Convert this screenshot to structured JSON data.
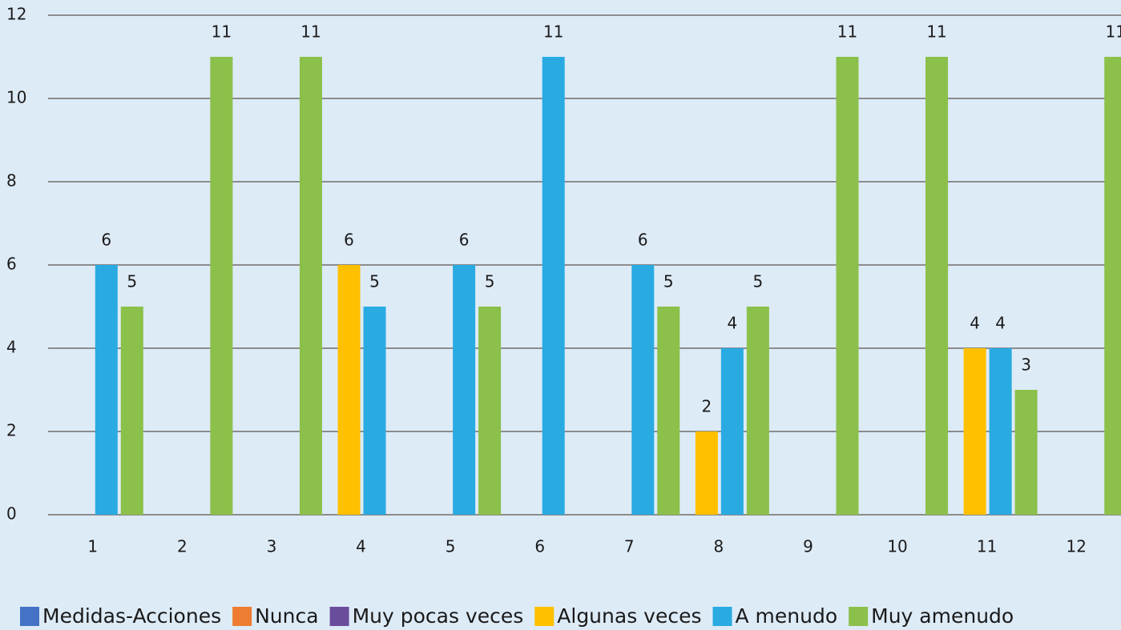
{
  "chart_data": {
    "type": "bar",
    "categories": [
      "1",
      "2",
      "3",
      "4",
      "5",
      "6",
      "7",
      "8",
      "9",
      "10",
      "11",
      "12"
    ],
    "series": [
      {
        "name": "Medidas-Acciones",
        "color": "#4472c4",
        "values": [
          null,
          null,
          null,
          null,
          null,
          null,
          null,
          null,
          null,
          null,
          null,
          null
        ]
      },
      {
        "name": "Nunca",
        "color": "#ed7d31",
        "values": [
          null,
          null,
          null,
          null,
          null,
          null,
          null,
          null,
          null,
          null,
          null,
          null
        ]
      },
      {
        "name": "Muy pocas veces",
        "color": "#6a4c9c",
        "values": [
          null,
          null,
          null,
          null,
          null,
          null,
          null,
          null,
          null,
          null,
          null,
          null
        ]
      },
      {
        "name": "Algunas veces",
        "color": "#ffc000",
        "values": [
          null,
          null,
          null,
          6,
          null,
          null,
          null,
          2,
          null,
          null,
          4,
          null
        ]
      },
      {
        "name": "A menudo",
        "color": "#29abe2",
        "values": [
          6,
          null,
          null,
          5,
          6,
          11,
          6,
          4,
          null,
          null,
          4,
          null
        ]
      },
      {
        "name": "Muy amenudo",
        "color": "#8bc04a",
        "values": [
          5,
          11,
          11,
          null,
          5,
          null,
          5,
          5,
          11,
          11,
          3,
          11
        ]
      }
    ],
    "ylim": [
      0,
      12
    ],
    "yticks": [
      0,
      2,
      4,
      6,
      8,
      10,
      12
    ],
    "grid": true,
    "legend": "bottom"
  }
}
